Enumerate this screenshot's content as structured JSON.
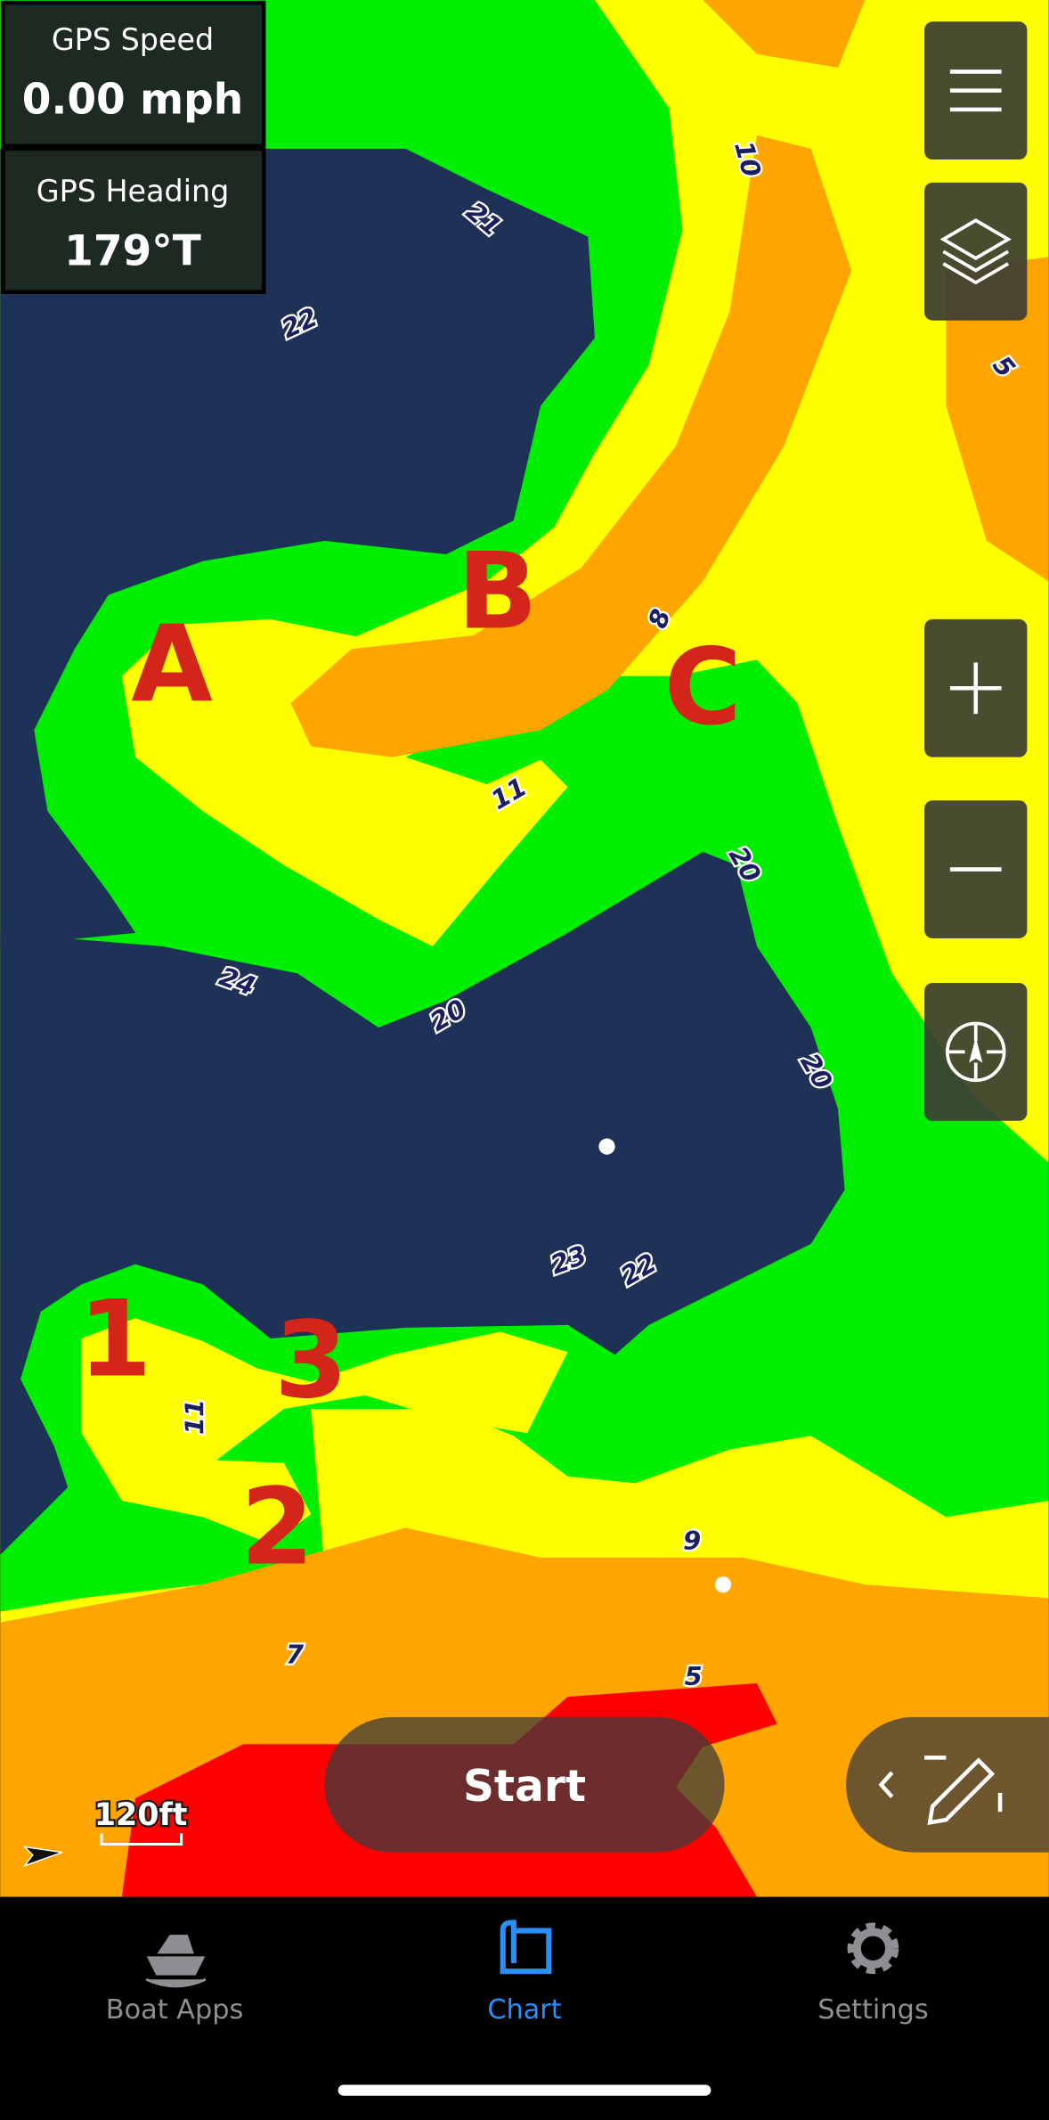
{
  "gps_panel": {
    "speed": {
      "label": "GPS Speed",
      "value": "0.00 mph"
    },
    "heading": {
      "label": "GPS Heading",
      "value": "179°T"
    }
  },
  "map": {
    "depth_labels": [
      "10",
      "21",
      "22",
      "5",
      "8",
      "11",
      "20",
      "24",
      "20",
      "20",
      "23",
      "22",
      "11",
      "9",
      "7",
      "5"
    ],
    "markers": [
      "A",
      "B",
      "C",
      "1",
      "2",
      "3"
    ],
    "scale": "120ft"
  },
  "start_button": "Start",
  "tab_bar": {
    "tabs": [
      "Boat Apps",
      "Chart",
      "Settings"
    ]
  }
}
